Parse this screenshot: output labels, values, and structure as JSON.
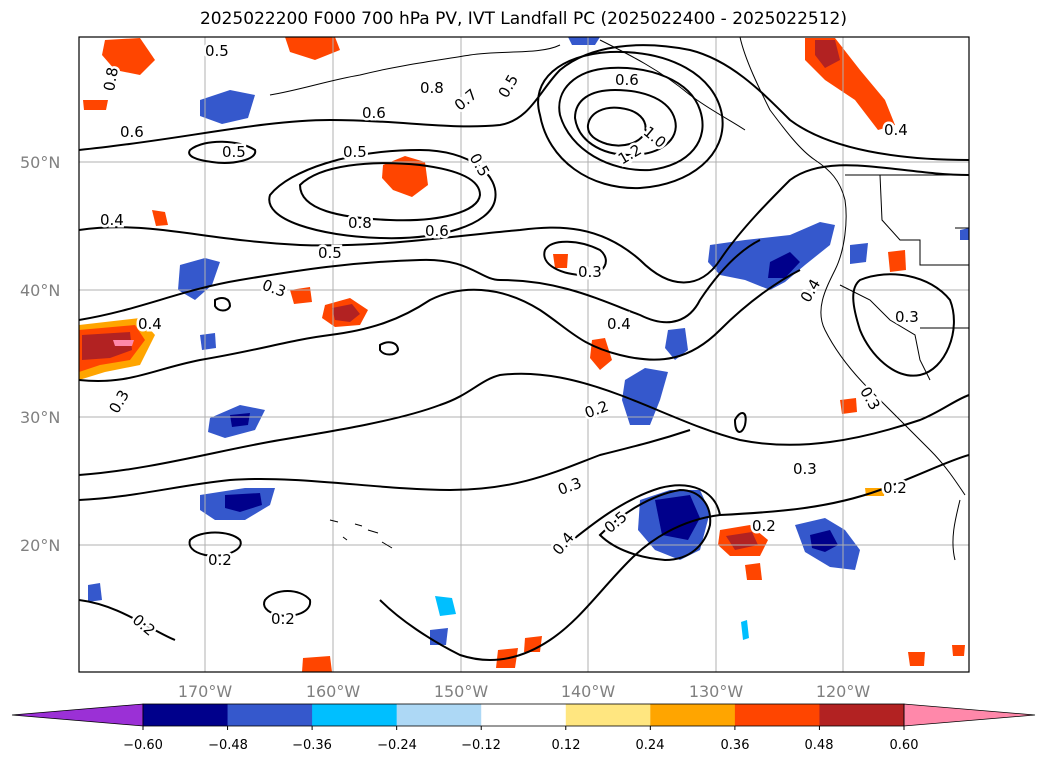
{
  "title": "2025022200 F000 700 hPa PV, IVT Landfall PC (2025022400 - 2025022512)",
  "map": {
    "lat_labels": [
      "50°N",
      "40°N",
      "30°N",
      "20°N"
    ],
    "lon_labels": [
      "170°W",
      "160°W",
      "150°W",
      "140°W",
      "130°W",
      "120°W"
    ],
    "contour_labels": [
      "0.5",
      "0.8",
      "0.6",
      "0.5",
      "0.8",
      "0.7",
      "0.5",
      "0.5",
      "1.0",
      "1.2",
      "0.6",
      "0.5",
      "0.4",
      "0.8",
      "0.6",
      "0.5",
      "0.6",
      "0.4",
      "0.3",
      "0.3",
      "0.4",
      "0.4",
      "0.3",
      "0.2",
      "0.3",
      "0.3",
      "0.4",
      "0.3",
      "0.2",
      "0.3",
      "0.2",
      "0.2",
      "0.2",
      "0.4",
      "0.5",
      "0.2"
    ],
    "colors": {
      "grid": "#b0b0b0",
      "contour": "#000000",
      "coast": "#000000"
    }
  },
  "colorbar": {
    "ticks": [
      "−0.60",
      "−0.48",
      "−0.36",
      "−0.24",
      "−0.12",
      "0.12",
      "0.24",
      "0.36",
      "0.48",
      "0.60"
    ],
    "bins": [
      "#9b30d6",
      "#00008b",
      "#3558cc",
      "#00bfff",
      "#add8f5",
      "#ffffff",
      "#ffe680",
      "#ffa500",
      "#ff4500",
      "#b22222",
      "#ff88aa"
    ]
  }
}
